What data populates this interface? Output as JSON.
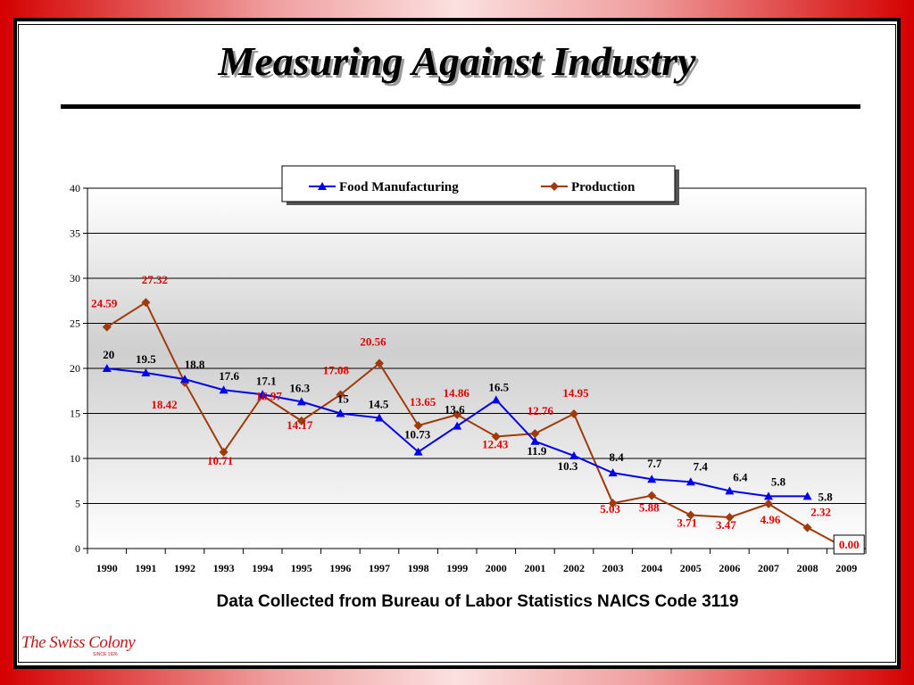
{
  "title": "Measuring Against Industry",
  "caption": "Data Collected from Bureau of Labor Statistics NAICS Code 3119",
  "logo": {
    "text": "The Swiss Colony",
    "subtext": "SINCE 1926"
  },
  "colors": {
    "food": "#0000ee",
    "production": "#a03a0a",
    "production_label": "#e00000"
  },
  "chart_data": {
    "type": "line",
    "title": "",
    "xlabel": "",
    "ylabel": "",
    "ylim": [
      0,
      40
    ],
    "yticks": [
      "0",
      "5",
      "10",
      "15",
      "20",
      "25",
      "30",
      "35",
      "40"
    ],
    "grid": true,
    "legend": "top-center",
    "categories": [
      "1990",
      "1991",
      "1992",
      "1993",
      "1994",
      "1995",
      "1996",
      "1997",
      "1998",
      "1999",
      "2000",
      "2001",
      "2002",
      "2003",
      "2004",
      "2005",
      "2006",
      "2007",
      "2008",
      "2009"
    ],
    "series": [
      {
        "name": "Food Manufacturing",
        "marker": "triangle",
        "color": "#0000ee",
        "values": [
          20,
          19.5,
          18.8,
          17.6,
          17.1,
          16.3,
          15,
          14.5,
          10.73,
          13.6,
          16.5,
          11.9,
          10.3,
          8.4,
          7.7,
          7.4,
          6.4,
          5.8,
          5.8,
          null
        ],
        "labels": [
          "20",
          "19.5",
          "18.8",
          "17.6",
          "17.1",
          "16.3",
          "15",
          "14.5",
          "10.73",
          "13.6",
          "16.5",
          "11.9",
          "10.3",
          "8.4",
          "7.7",
          "7.4",
          "6.4",
          "5.8",
          "5.8",
          ""
        ]
      },
      {
        "name": "Production",
        "marker": "diamond",
        "color": "#a03a0a",
        "values": [
          24.59,
          27.32,
          18.42,
          10.71,
          16.97,
          14.17,
          17.08,
          20.56,
          13.65,
          14.86,
          12.43,
          12.76,
          14.95,
          5.03,
          5.88,
          3.71,
          3.47,
          4.96,
          2.32,
          0.0
        ],
        "labels": [
          "24.59",
          "27.32",
          "18.42",
          "10.71",
          "16.97",
          "14.17",
          "17.08",
          "20.56",
          "13.65",
          "14.86",
          "12.43",
          "12.76",
          "14.95",
          "5.03",
          "5.88",
          "3.71",
          "3.47",
          "4.96",
          "2.32",
          "0.00"
        ]
      }
    ]
  }
}
